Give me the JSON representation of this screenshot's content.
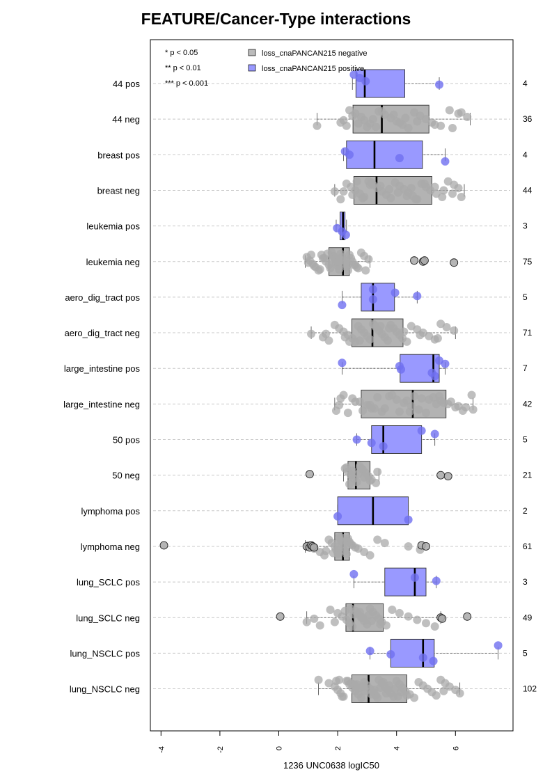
{
  "chart_data": {
    "type": "boxplot",
    "title": "FEATURE/Cancer-Type interactions",
    "xlabel": "1236 UNC0638 logIC50",
    "xlim": [
      -4.3,
      7.9
    ],
    "xticks": [
      -4,
      -2,
      0,
      2,
      4,
      6
    ],
    "xtick_labels": [
      "-4",
      "-2",
      "0",
      "2",
      "4",
      "6"
    ],
    "grid": "horizontal dashed",
    "legend": {
      "placement": "top-left",
      "significance": [
        "* p < 0.05",
        "** p < 0.01",
        "*** p < 0.001"
      ],
      "entries": [
        {
          "label": "loss_cnaPANCAN215 negative",
          "color": "#bbbbbb"
        },
        {
          "label": "loss_cnaPANCAN215 positive",
          "color": "#9999ff"
        }
      ]
    },
    "colors": {
      "negative": "#b3b3b3",
      "positive": "#9999ff",
      "positive_point": "#6f6ff0",
      "negative_point": "#a9a9a9"
    },
    "categories": [
      {
        "label": "44 pos",
        "group": "positive",
        "n": "4",
        "whisker": [
          2.5,
          5.45
        ],
        "box": [
          2.62,
          4.28
        ],
        "median": 2.92,
        "points": [
          2.55,
          2.75,
          2.95,
          5.45
        ],
        "outliers": []
      },
      {
        "label": "44 neg",
        "group": "negative",
        "n": "36",
        "whisker": [
          1.3,
          6.5
        ],
        "box": [
          2.52,
          5.1
        ],
        "median": 3.5,
        "points": [
          2.1,
          2.3,
          2.4,
          2.6,
          2.8,
          2.9,
          3.1,
          3.3,
          3.5,
          3.6,
          3.8,
          4.0,
          4.2,
          4.4,
          4.6,
          4.8,
          5.0,
          5.2,
          5.5,
          5.8,
          6.1,
          6.4,
          2.2,
          2.7,
          3.0,
          3.4,
          3.9,
          4.3,
          4.7,
          5.3,
          5.9,
          6.2,
          2.5,
          3.2,
          4.1,
          1.3
        ],
        "outliers": []
      },
      {
        "label": "breast pos",
        "group": "positive",
        "n": "4",
        "whisker": [
          2.2,
          5.65
        ],
        "box": [
          2.3,
          4.88
        ],
        "median": 3.25,
        "points": [
          2.25,
          2.4,
          4.1,
          5.65
        ],
        "outliers": []
      },
      {
        "label": "breast neg",
        "group": "negative",
        "n": "44",
        "whisker": [
          1.9,
          6.3
        ],
        "box": [
          2.55,
          5.2
        ],
        "median": 3.32,
        "points": [
          2.1,
          2.3,
          2.45,
          2.6,
          2.75,
          2.9,
          3.05,
          3.2,
          3.35,
          3.5,
          3.65,
          3.8,
          3.95,
          4.1,
          4.25,
          4.4,
          4.55,
          4.7,
          4.85,
          5.0,
          5.15,
          5.35,
          5.55,
          5.75,
          5.95,
          6.1,
          2.2,
          2.5,
          2.85,
          3.15,
          3.45,
          3.75,
          4.05,
          4.35,
          4.65,
          4.95,
          5.3,
          5.6,
          5.9,
          6.2,
          2.65,
          3.1,
          4.5,
          1.9
        ],
        "outliers": []
      },
      {
        "label": "leukemia pos",
        "group": "positive",
        "n": "3",
        "whisker": [
          1.95,
          2.3
        ],
        "box": [
          2.08,
          2.25
        ],
        "median": 2.18,
        "points": [
          1.98,
          2.15,
          2.28
        ],
        "outliers": []
      },
      {
        "label": "leukemia neg",
        "group": "negative",
        "n": "75",
        "whisker": [
          0.9,
          3.1
        ],
        "box": [
          1.7,
          2.4
        ],
        "median": 2.18,
        "points": [
          0.95,
          1.05,
          1.15,
          1.25,
          1.35,
          1.45,
          1.55,
          1.6,
          1.7,
          1.75,
          1.8,
          1.85,
          1.9,
          1.95,
          2.0,
          2.05,
          2.1,
          2.15,
          2.2,
          2.25,
          2.3,
          2.35,
          2.4,
          2.45,
          2.5,
          2.6,
          2.7,
          2.8,
          2.9,
          3.05,
          1.0,
          1.2,
          1.4,
          1.65,
          1.88,
          2.12,
          2.38,
          2.65,
          2.95,
          1.1,
          1.5,
          2.0,
          2.55
        ],
        "outliers": [
          4.6,
          4.9,
          5.95,
          4.95
        ]
      },
      {
        "label": "aero_dig_tract pos",
        "group": "positive",
        "n": "5",
        "whisker": [
          2.15,
          4.7
        ],
        "box": [
          2.8,
          3.93
        ],
        "median": 3.2,
        "points": [
          2.15,
          3.2,
          3.95,
          4.7,
          3.2
        ],
        "outliers": []
      },
      {
        "label": "aero_dig_tract neg",
        "group": "negative",
        "n": "71",
        "whisker": [
          1.1,
          6.0
        ],
        "box": [
          2.48,
          4.22
        ],
        "median": 3.18,
        "points": [
          1.1,
          1.5,
          1.7,
          1.9,
          2.05,
          2.2,
          2.35,
          2.5,
          2.6,
          2.7,
          2.8,
          2.9,
          3.0,
          3.1,
          3.2,
          3.3,
          3.4,
          3.5,
          3.6,
          3.7,
          3.8,
          3.9,
          4.0,
          4.1,
          4.2,
          4.35,
          4.5,
          4.7,
          4.9,
          5.1,
          5.3,
          5.5,
          5.7,
          5.95,
          1.6,
          2.25,
          2.75,
          3.25,
          3.75,
          4.25,
          4.8,
          5.4,
          2.4,
          3.45
        ],
        "outliers": []
      },
      {
        "label": "large_intestine pos",
        "group": "positive",
        "n": "7",
        "whisker": [
          2.15,
          5.65
        ],
        "box": [
          4.12,
          5.45
        ],
        "median": 5.25,
        "points": [
          2.15,
          4.1,
          4.15,
          5.2,
          5.3,
          5.45,
          5.65
        ],
        "outliers": []
      },
      {
        "label": "large_intestine neg",
        "group": "negative",
        "n": "42",
        "whisker": [
          1.9,
          6.6
        ],
        "box": [
          2.8,
          5.68
        ],
        "median": 4.55,
        "points": [
          1.95,
          2.2,
          2.5,
          2.75,
          3.0,
          3.25,
          3.5,
          3.75,
          4.0,
          4.25,
          4.5,
          4.75,
          5.0,
          5.25,
          5.5,
          5.75,
          6.0,
          6.25,
          6.55,
          2.1,
          2.6,
          3.1,
          3.6,
          4.1,
          4.6,
          5.1,
          5.6,
          6.1,
          6.6,
          2.35,
          3.35,
          4.35,
          5.35,
          6.35,
          2.85,
          3.85,
          4.85,
          5.85,
          2.05,
          3.15,
          4.45,
          5.45
        ],
        "outliers": []
      },
      {
        "label": "50 pos",
        "group": "positive",
        "n": "5",
        "whisker": [
          2.65,
          5.3
        ],
        "box": [
          3.15,
          4.85
        ],
        "median": 3.55,
        "points": [
          2.65,
          3.15,
          3.55,
          4.85,
          5.3
        ],
        "outliers": []
      },
      {
        "label": "50 neg",
        "group": "negative",
        "n": "21",
        "whisker": [
          2.2,
          3.4
        ],
        "box": [
          2.35,
          3.1
        ],
        "median": 2.62,
        "points": [
          2.25,
          2.35,
          2.45,
          2.55,
          2.65,
          2.75,
          2.85,
          2.95,
          3.05,
          3.15,
          3.3,
          2.3,
          2.5,
          2.7,
          2.9,
          3.1,
          2.4,
          2.8,
          3.35
        ],
        "outliers": [
          1.05,
          5.5,
          5.75
        ]
      },
      {
        "label": "lymphoma pos",
        "group": "positive",
        "n": "2",
        "whisker": [
          2.0,
          4.4
        ],
        "box": [
          2.0,
          4.4
        ],
        "median": 3.2,
        "points": [
          2.0,
          4.4
        ],
        "outliers": []
      },
      {
        "label": "lymphoma neg",
        "group": "negative",
        "n": "61",
        "whisker": [
          0.9,
          2.4
        ],
        "box": [
          1.9,
          2.4
        ],
        "median": 2.18,
        "points": [
          1.0,
          1.2,
          1.4,
          1.55,
          1.7,
          1.8,
          1.9,
          1.95,
          2.0,
          2.05,
          2.1,
          2.15,
          2.2,
          2.25,
          2.3,
          2.35,
          2.4,
          2.5,
          2.7,
          2.9,
          3.1,
          3.35,
          3.6,
          4.4,
          4.8,
          1.85,
          2.12,
          2.28,
          2.45,
          2.6,
          1.6,
          2.02
        ],
        "outliers": [
          -3.9,
          0.95,
          1.05,
          1.1,
          1.15,
          1.2,
          4.85,
          5.0
        ]
      },
      {
        "label": "lung_SCLC pos",
        "group": "positive",
        "n": "3",
        "whisker": [
          2.55,
          5.35
        ],
        "box": [
          3.6,
          5.0
        ],
        "median": 4.62,
        "points": [
          2.55,
          4.62,
          5.35
        ],
        "outliers": []
      },
      {
        "label": "lung_SCLC neg",
        "group": "negative",
        "n": "49",
        "whisker": [
          0.95,
          5.5
        ],
        "box": [
          2.28,
          3.55
        ],
        "median": 2.52,
        "points": [
          0.95,
          1.4,
          1.75,
          2.0,
          2.15,
          2.3,
          2.4,
          2.5,
          2.6,
          2.7,
          2.8,
          2.9,
          3.0,
          3.1,
          3.2,
          3.3,
          3.4,
          3.5,
          3.65,
          3.85,
          4.1,
          4.4,
          4.7,
          5.0,
          5.3,
          2.25,
          2.55,
          2.85,
          3.15,
          3.45,
          2.45,
          2.75,
          3.05,
          1.2,
          1.9
        ],
        "outliers": [
          0.05,
          5.5,
          5.55,
          6.4
        ]
      },
      {
        "label": "lung_NSCLC pos",
        "group": "positive",
        "n": "5",
        "whisker": [
          3.1,
          7.45
        ],
        "box": [
          3.8,
          5.28
        ],
        "median": 4.9,
        "points": [
          3.1,
          3.8,
          4.9,
          5.25,
          7.45
        ],
        "outliers": []
      },
      {
        "label": "lung_NSCLC neg",
        "group": "negative",
        "n": "102",
        "whisker": [
          1.35,
          6.15
        ],
        "box": [
          2.48,
          4.35
        ],
        "median": 3.05,
        "points": [
          1.35,
          1.7,
          1.9,
          2.0,
          2.1,
          2.2,
          2.3,
          2.4,
          2.5,
          2.6,
          2.7,
          2.8,
          2.9,
          3.0,
          3.1,
          3.2,
          3.3,
          3.4,
          3.5,
          3.6,
          3.7,
          3.8,
          3.9,
          4.0,
          4.1,
          4.2,
          4.3,
          4.45,
          4.6,
          4.75,
          4.9,
          5.05,
          5.2,
          5.35,
          5.5,
          5.65,
          5.8,
          6.0,
          6.15,
          2.15,
          2.35,
          2.55,
          2.75,
          2.95,
          3.15,
          3.35,
          3.55,
          3.75,
          3.95,
          4.15,
          4.35,
          2.05,
          2.45,
          2.85,
          3.25,
          3.65,
          4.05,
          1.95,
          2.65,
          3.45,
          5.6
        ],
        "outliers": []
      }
    ]
  }
}
